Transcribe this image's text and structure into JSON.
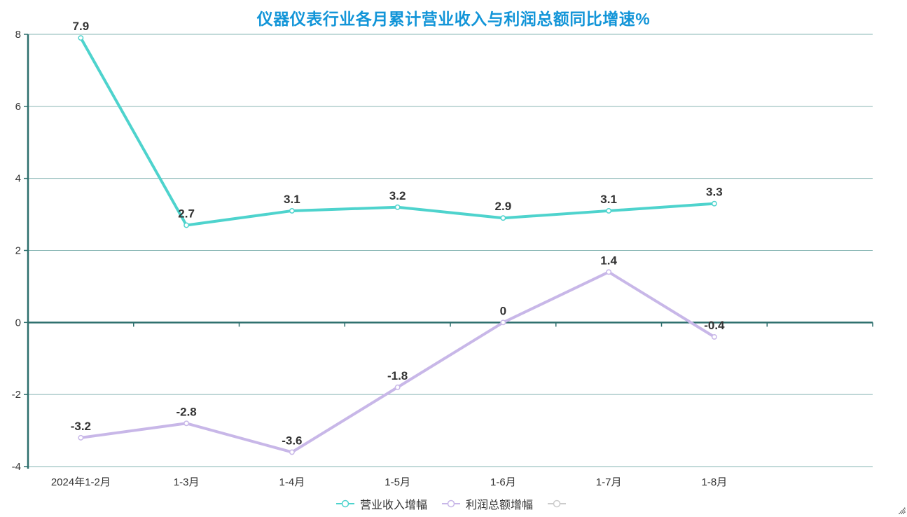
{
  "chart_data": {
    "type": "line",
    "title": "仪器仪表行业各月累计营业收入与利润总额同比增速%",
    "title_color": "#1295d8",
    "categories": [
      "2024年1-2月",
      "1-3月",
      "1-4月",
      "1-5月",
      "1-6月",
      "1-7月",
      "1-8月"
    ],
    "series": [
      {
        "name": "营业收入增幅",
        "color": "#4ed3cd",
        "values": [
          7.9,
          2.7,
          3.1,
          3.2,
          2.9,
          3.1,
          3.3
        ]
      },
      {
        "name": "利润总额增幅",
        "color": "#c8b7e8",
        "values": [
          -3.2,
          -2.8,
          -3.6,
          -1.8,
          0,
          1.4,
          -0.4
        ]
      }
    ],
    "legend": [
      {
        "label": "营业收入增幅",
        "color": "#4ed3cd",
        "active": true
      },
      {
        "label": "利润总额增幅",
        "color": "#c8b7e8",
        "active": true
      },
      {
        "label": "",
        "color": "#cccccc",
        "active": false
      }
    ],
    "ylim": [
      -4,
      8
    ],
    "ytick_step": 2,
    "ytick_labels": [
      "-4",
      "-2",
      "0",
      "2",
      "4",
      "6",
      "8"
    ],
    "grid": true,
    "legend_position": "bottom",
    "x_axis_total_slots": 8,
    "axis_color": "#2c6e6c",
    "grid_color": "#86b5b3",
    "tick_label_color": "#333333",
    "data_label_color": "#333333"
  }
}
